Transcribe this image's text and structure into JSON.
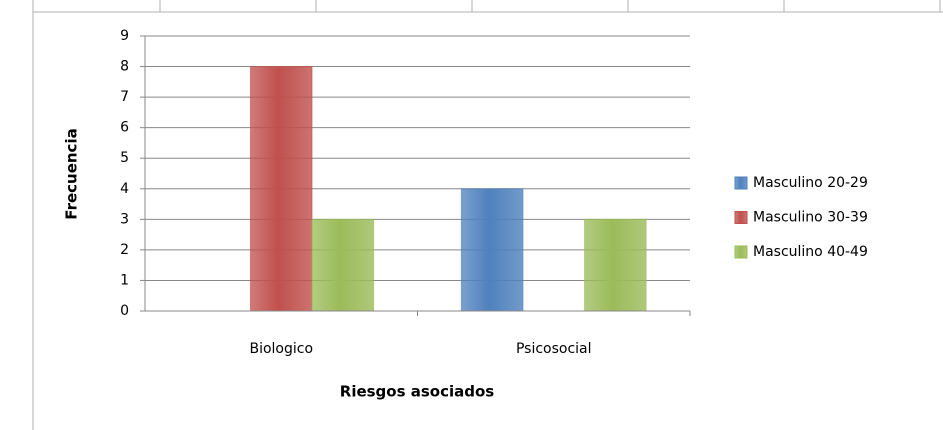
{
  "chart_data": {
    "type": "bar",
    "categories": [
      "Biologico",
      "Psicosocial"
    ],
    "series": [
      {
        "name": "Masculino 20-29",
        "color": "#4f81bd",
        "values": [
          0,
          4
        ]
      },
      {
        "name": "Masculino 30-39",
        "color": "#c0504d",
        "values": [
          8,
          0
        ]
      },
      {
        "name": "Masculino 40-49",
        "color": "#9bbb59",
        "values": [
          3,
          3
        ]
      }
    ],
    "ylim": [
      0,
      9
    ],
    "yticks": [
      0,
      1,
      2,
      3,
      4,
      5,
      6,
      7,
      8,
      9
    ],
    "grid": true,
    "xlabel": "Riesgos asociados",
    "ylabel": "Frecuencia",
    "legend": "right"
  }
}
